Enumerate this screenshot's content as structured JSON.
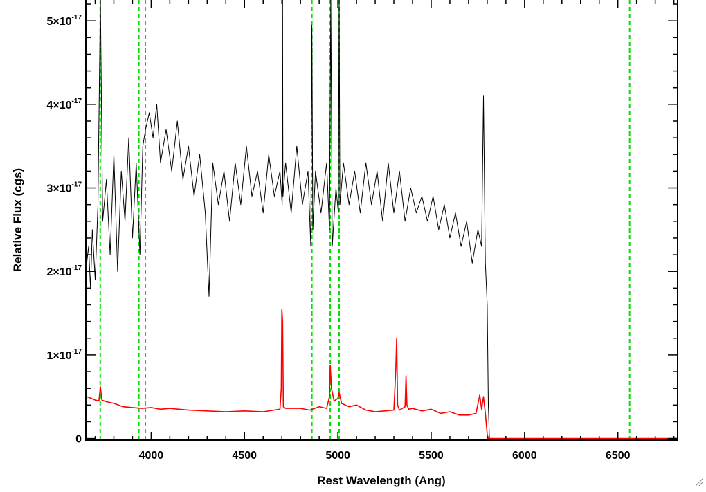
{
  "chart_data": {
    "type": "line",
    "title": "",
    "xlabel": "Rest Wavelength (Ang)",
    "ylabel": "Relative Flux (cgs)",
    "xlim": [
      3650,
      6820
    ],
    "ylim": [
      -2e-19,
      5.25e-17
    ],
    "x_ticks": [
      {
        "value": 4000,
        "label": "4000"
      },
      {
        "value": 4500,
        "label": "4500"
      },
      {
        "value": 5000,
        "label": "5000"
      },
      {
        "value": 5500,
        "label": "5500"
      },
      {
        "value": 6000,
        "label": "6000"
      },
      {
        "value": 6500,
        "label": "6500"
      }
    ],
    "y_ticks": [
      {
        "value": 0,
        "label": "0",
        "mantissa": "",
        "exponent": ""
      },
      {
        "value": 1e-17,
        "label": "1×10-17",
        "mantissa": "1×10",
        "exponent": "-17"
      },
      {
        "value": 2e-17,
        "label": "2×10-17",
        "mantissa": "2×10",
        "exponent": "-17"
      },
      {
        "value": 3e-17,
        "label": "3×10-17",
        "mantissa": "3×10",
        "exponent": "-17"
      },
      {
        "value": 4e-17,
        "label": "4×10-17",
        "mantissa": "4×10",
        "exponent": "-17"
      },
      {
        "value": 5e-17,
        "label": "5×10-17",
        "mantissa": "5×10",
        "exponent": "-17"
      }
    ],
    "vlines": [
      3727,
      3934,
      3969,
      4861,
      4959,
      5007,
      6563
    ],
    "grid": false,
    "legend": "none",
    "series": [
      {
        "color": "#000000",
        "x": [
          3655,
          3665,
          3675,
          3685,
          3700,
          3715,
          3728,
          3740,
          3760,
          3780,
          3800,
          3820,
          3840,
          3860,
          3880,
          3900,
          3920,
          3940,
          3955,
          3970,
          3990,
          4010,
          4030,
          4050,
          4080,
          4110,
          4140,
          4170,
          4200,
          4230,
          4260,
          4290,
          4310,
          4330,
          4360,
          4390,
          4420,
          4450,
          4480,
          4510,
          4540,
          4570,
          4600,
          4630,
          4660,
          4690,
          4702,
          4704,
          4706,
          4720,
          4750,
          4780,
          4810,
          4840,
          4855,
          4861,
          4866,
          4880,
          4910,
          4940,
          4955,
          4962,
          4970,
          4990,
          5003,
          5007,
          5011,
          5030,
          5060,
          5090,
          5120,
          5150,
          5180,
          5210,
          5240,
          5270,
          5300,
          5330,
          5360,
          5390,
          5420,
          5450,
          5480,
          5510,
          5540,
          5570,
          5600,
          5630,
          5660,
          5690,
          5720,
          5750,
          5770,
          5780,
          5790,
          5800,
          5806,
          5812,
          6000,
          6500,
          6820
        ],
        "y": [
          2.1e-17,
          2.3e-17,
          1.8e-17,
          2.5e-17,
          1.9e-17,
          2.8e-17,
          5.3e-17,
          2.6e-17,
          3.1e-17,
          2.2e-17,
          3.4e-17,
          2e-17,
          3.2e-17,
          2.6e-17,
          3.6e-17,
          2.4e-17,
          3.3e-17,
          2.2e-17,
          3.5e-17,
          3.7e-17,
          3.9e-17,
          3.6e-17,
          4e-17,
          3.3e-17,
          3.7e-17,
          3.2e-17,
          3.8e-17,
          3.1e-17,
          3.5e-17,
          2.9e-17,
          3.4e-17,
          2.7e-17,
          1.7e-17,
          3.3e-17,
          2.8e-17,
          3.2e-17,
          2.6e-17,
          3.3e-17,
          2.8e-17,
          3.5e-17,
          2.9e-17,
          3.2e-17,
          2.7e-17,
          3.4e-17,
          2.9e-17,
          3.2e-17,
          2.8e-17,
          5.3e-17,
          2.9e-17,
          3.3e-17,
          2.7e-17,
          3.5e-17,
          2.8e-17,
          3.2e-17,
          2.3e-17,
          4.95e-17,
          2.5e-17,
          3.2e-17,
          2.7e-17,
          3.3e-17,
          2.5e-17,
          5.3e-17,
          2.3e-17,
          3e-17,
          2.7e-17,
          5.3e-17,
          2.8e-17,
          3.3e-17,
          2.8e-17,
          3.2e-17,
          2.7e-17,
          3.3e-17,
          2.8e-17,
          3.2e-17,
          2.6e-17,
          3.3e-17,
          2.7e-17,
          3.2e-17,
          2.6e-17,
          3e-17,
          2.7e-17,
          2.9e-17,
          2.6e-17,
          2.9e-17,
          2.5e-17,
          2.8e-17,
          2.4e-17,
          2.7e-17,
          2.3e-17,
          2.6e-17,
          2.1e-17,
          2.5e-17,
          2.3e-17,
          4.1e-17,
          2.1e-17,
          1.6e-17,
          4e-18,
          0,
          0,
          0,
          0
        ]
      },
      {
        "color": "#ff0000",
        "x": [
          3655,
          3680,
          3700,
          3720,
          3728,
          3736,
          3760,
          3800,
          3850,
          3900,
          3950,
          4000,
          4050,
          4100,
          4200,
          4300,
          4400,
          4500,
          4600,
          4690,
          4697,
          4700,
          4704,
          4708,
          4720,
          4800,
          4850,
          4900,
          4940,
          4955,
          4959,
          4966,
          4980,
          5000,
          5007,
          5020,
          5060,
          5100,
          5150,
          5200,
          5250,
          5300,
          5310,
          5315,
          5320,
          5330,
          5360,
          5365,
          5370,
          5380,
          5400,
          5450,
          5500,
          5550,
          5600,
          5650,
          5700,
          5740,
          5760,
          5770,
          5780,
          5790,
          5800,
          5806,
          5812,
          6000,
          6500,
          6820
        ],
        "y": [
          5e-18,
          4.8e-18,
          4.6e-18,
          4.5e-18,
          6.2e-18,
          4.6e-18,
          4.4e-18,
          4.2e-18,
          3.8e-18,
          3.7e-18,
          3.6e-18,
          3.7e-18,
          3.5e-18,
          3.6e-18,
          3.4e-18,
          3.3e-18,
          3.2e-18,
          3.3e-18,
          3.2e-18,
          3.5e-18,
          6e-18,
          1.55e-17,
          1.4e-17,
          3.8e-18,
          3.6e-18,
          3.6e-18,
          3.4e-18,
          3.8e-18,
          3.6e-18,
          5e-18,
          8.8e-18,
          6e-18,
          4.5e-18,
          4.8e-18,
          5.5e-18,
          4.2e-18,
          3.8e-18,
          4e-18,
          3.4e-18,
          3.2e-18,
          3.3e-18,
          3.4e-18,
          8e-18,
          1.2e-17,
          4e-18,
          3.4e-18,
          3.8e-18,
          7.5e-18,
          4e-18,
          3.5e-18,
          3.6e-18,
          3.3e-18,
          3.5e-18,
          3e-18,
          3.2e-18,
          2.8e-18,
          2.8e-18,
          3e-18,
          5.2e-18,
          3.5e-18,
          5e-18,
          3e-18,
          5e-19,
          0,
          0,
          0,
          0,
          0
        ]
      }
    ],
    "styles": {
      "dash_color": "#00e000",
      "axis_color": "#000000"
    }
  }
}
